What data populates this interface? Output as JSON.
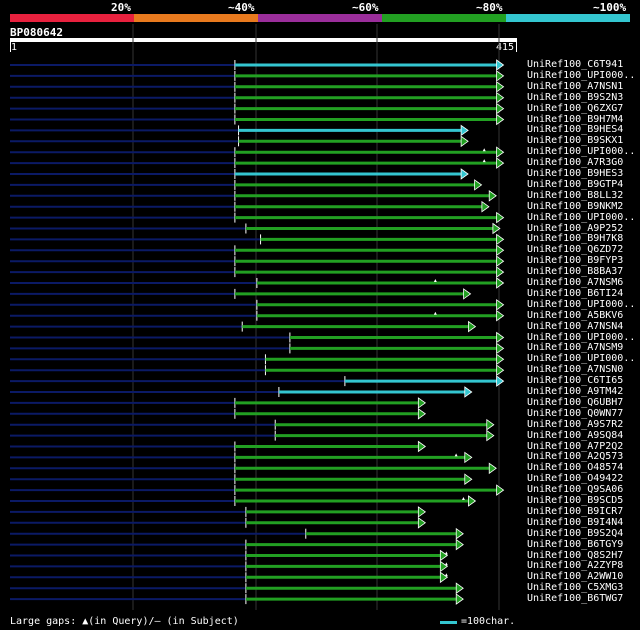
{
  "scale": {
    "segments": [
      {
        "label": "20%",
        "color": "#e8213e"
      },
      {
        "label": "~40%",
        "color": "#e87a1e"
      },
      {
        "label": "~60%",
        "color": "#9b2e9b"
      },
      {
        "label": "~80%",
        "color": "#22a022"
      },
      {
        "label": "~100%",
        "color": "#34c6d0"
      }
    ]
  },
  "query": {
    "id": "BP080642",
    "start": "1",
    "end": "415",
    "length": 415
  },
  "legend": {
    "gaps_text": "Large gaps: ▲(in Query)/– (in Subject)",
    "scale_text": "=100char."
  },
  "colors": {
    "green": "#22a022",
    "cyan": "#34c6d0",
    "navy": "#0b1a66",
    "grid": "#333333"
  },
  "hits": [
    {
      "label": "UniRef100_C6T941",
      "start": 185,
      "end": 404,
      "color": "cyan"
    },
    {
      "label": "UniRef100_UPI000..",
      "start": 185,
      "end": 404,
      "color": "green"
    },
    {
      "label": "UniRef100_A7NSN1",
      "start": 185,
      "end": 404,
      "color": "green"
    },
    {
      "label": "UniRef100_B9S2N3",
      "start": 185,
      "end": 404,
      "color": "green"
    },
    {
      "label": "UniRef100_Q6ZXG7",
      "start": 185,
      "end": 404,
      "color": "green"
    },
    {
      "label": "UniRef100_B9H7M4",
      "start": 185,
      "end": 404,
      "color": "green"
    },
    {
      "label": "UniRef100_B9HES4",
      "start": 188,
      "end": 375,
      "color": "cyan"
    },
    {
      "label": "UniRef100_B9SKX1",
      "start": 188,
      "end": 375,
      "color": "green"
    },
    {
      "label": "UniRef100_UPI000..",
      "start": 185,
      "end": 404,
      "color": "green",
      "qgap": 389
    },
    {
      "label": "UniRef100_A7R3G0",
      "start": 185,
      "end": 404,
      "color": "green",
      "qgap": 389
    },
    {
      "label": "UniRef100_B9HES3",
      "start": 185,
      "end": 375,
      "color": "cyan"
    },
    {
      "label": "UniRef100_B9GTP4",
      "start": 185,
      "end": 386,
      "color": "green"
    },
    {
      "label": "UniRef100_B8LL32",
      "start": 185,
      "end": 398,
      "color": "green"
    },
    {
      "label": "UniRef100_B9NKM2",
      "start": 185,
      "end": 392,
      "color": "green"
    },
    {
      "label": "UniRef100_UPI000..",
      "start": 185,
      "end": 404,
      "color": "green"
    },
    {
      "label": "UniRef100_A9P252",
      "start": 194,
      "end": 401,
      "color": "green"
    },
    {
      "label": "UniRef100_B9H7K8",
      "start": 206,
      "end": 404,
      "color": "green"
    },
    {
      "label": "UniRef100_Q6ZD72",
      "start": 185,
      "end": 404,
      "color": "green"
    },
    {
      "label": "UniRef100_B9FYP3",
      "start": 185,
      "end": 404,
      "color": "green"
    },
    {
      "label": "UniRef100_B8BA37",
      "start": 185,
      "end": 404,
      "color": "green"
    },
    {
      "label": "UniRef100_A7NSM6",
      "start": 203,
      "end": 404,
      "color": "green",
      "qgap": 349
    },
    {
      "label": "UniRef100_B6TI24",
      "start": 185,
      "end": 377,
      "color": "green"
    },
    {
      "label": "UniRef100_UPI000..",
      "start": 203,
      "end": 404,
      "color": "green"
    },
    {
      "label": "UniRef100_A5BKV6",
      "start": 203,
      "end": 404,
      "color": "green",
      "qgap": 349
    },
    {
      "label": "UniRef100_A7NSN4",
      "start": 191,
      "end": 381,
      "color": "green"
    },
    {
      "label": "UniRef100_UPI000..",
      "start": 230,
      "end": 404,
      "color": "green"
    },
    {
      "label": "UniRef100_A7NSM9",
      "start": 230,
      "end": 404,
      "color": "green"
    },
    {
      "label": "UniRef100_UPI000..",
      "start": 210,
      "end": 404,
      "color": "green"
    },
    {
      "label": "UniRef100_A7NSN0",
      "start": 210,
      "end": 404,
      "color": "green"
    },
    {
      "label": "UniRef100_C6TI65",
      "start": 275,
      "end": 404,
      "color": "cyan"
    },
    {
      "label": "UniRef100_A9TM42",
      "start": 221,
      "end": 378,
      "color": "cyan"
    },
    {
      "label": "UniRef100_Q6UBH7",
      "start": 185,
      "end": 340,
      "color": "green"
    },
    {
      "label": "UniRef100_Q0WN77",
      "start": 185,
      "end": 340,
      "color": "green"
    },
    {
      "label": "UniRef100_A9S7R2",
      "start": 218,
      "end": 396,
      "color": "green"
    },
    {
      "label": "UniRef100_A9SQ84",
      "start": 218,
      "end": 396,
      "color": "green"
    },
    {
      "label": "UniRef100_A7P2Q2",
      "start": 185,
      "end": 340,
      "color": "green"
    },
    {
      "label": "UniRef100_A2Q573",
      "start": 185,
      "end": 378,
      "color": "green",
      "qgap": 366
    },
    {
      "label": "UniRef100_O48574",
      "start": 185,
      "end": 398,
      "color": "green"
    },
    {
      "label": "UniRef100_O49422",
      "start": 185,
      "end": 378,
      "color": "green"
    },
    {
      "label": "UniRef100_Q9SA06",
      "start": 185,
      "end": 404,
      "color": "green"
    },
    {
      "label": "UniRef100_B9SCD5",
      "start": 185,
      "end": 381,
      "color": "green",
      "qgap": 372
    },
    {
      "label": "UniRef100_B9ICR7",
      "start": 194,
      "end": 340,
      "color": "green"
    },
    {
      "label": "UniRef100_B9I4N4",
      "start": 194,
      "end": 340,
      "color": "green"
    },
    {
      "label": "UniRef100_B9S2Q4",
      "start": 243,
      "end": 371,
      "color": "green"
    },
    {
      "label": "UniRef100_B6TGY9",
      "start": 194,
      "end": 371,
      "color": "green"
    },
    {
      "label": "UniRef100_Q8S2H7",
      "start": 194,
      "end": 358,
      "color": "green",
      "qgap": 358
    },
    {
      "label": "UniRef100_A2ZYP8",
      "start": 194,
      "end": 358,
      "color": "green",
      "qgap": 358
    },
    {
      "label": "UniRef100_A2WW10",
      "start": 194,
      "end": 358,
      "color": "green",
      "qgap": 358
    },
    {
      "label": "UniRef100_C5XMG3",
      "start": 194,
      "end": 371,
      "color": "green"
    },
    {
      "label": "UniRef100_B6TWG7",
      "start": 194,
      "end": 371,
      "color": "green"
    }
  ]
}
